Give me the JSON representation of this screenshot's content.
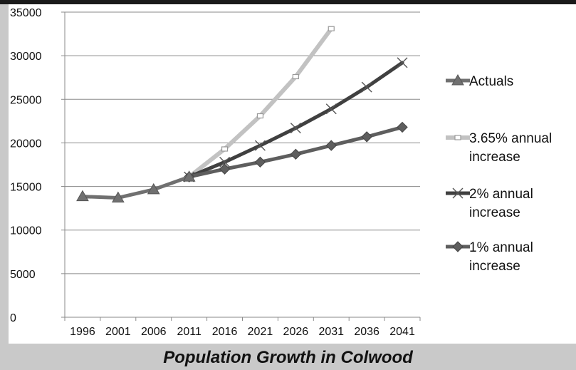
{
  "caption": "Population Growth in Colwood",
  "chart_data": {
    "type": "line",
    "x": [
      "1996",
      "2001",
      "2006",
      "2011",
      "2016",
      "2021",
      "2026",
      "2031",
      "2036",
      "2041"
    ],
    "ylim": [
      0,
      35000
    ],
    "yticks": [
      0,
      5000,
      10000,
      15000,
      20000,
      25000,
      30000,
      35000
    ],
    "ytick_labels": [
      "0",
      "5000",
      "10000",
      "15000",
      "20000",
      "25000",
      "30000",
      "35000"
    ],
    "grid": true,
    "legend_position": "right",
    "series": [
      {
        "name": "Actuals",
        "marker": "triangle",
        "color": "#707070",
        "values": [
          13850,
          13700,
          14650,
          16100,
          null,
          null,
          null,
          null,
          null,
          null
        ]
      },
      {
        "name": "3.65% annual increase",
        "legend_lines": [
          "3.65% annual",
          "increase"
        ],
        "marker": "square",
        "color": "#c2c2c2",
        "values": [
          null,
          null,
          null,
          16100,
          19300,
          23100,
          27600,
          33100,
          null,
          null
        ]
      },
      {
        "name": "2% annual increase",
        "legend_lines": [
          "2% annual",
          "increase"
        ],
        "marker": "x",
        "color": "#404040",
        "values": [
          null,
          null,
          null,
          16100,
          17800,
          19700,
          21700,
          23900,
          26400,
          29200
        ]
      },
      {
        "name": "1% annual increase",
        "legend_lines": [
          "1% annual",
          "increase"
        ],
        "marker": "diamond",
        "color": "#5e5e5e",
        "values": [
          null,
          null,
          null,
          16100,
          17000,
          17800,
          18700,
          19700,
          20700,
          21800
        ]
      }
    ]
  }
}
